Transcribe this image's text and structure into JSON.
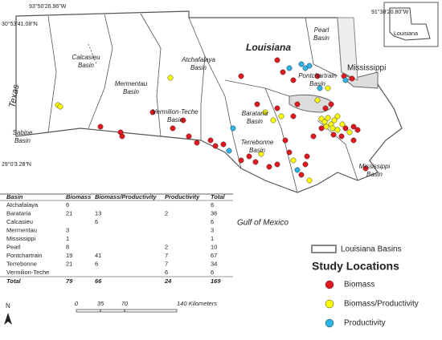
{
  "coordinates": {
    "top_left_w": "93°50'26.96\"W",
    "top_left_n": "30°53'41.08\"N",
    "top_right_w": "91°38'20.80\"W",
    "bottom_n": "29°0'3.28\"N"
  },
  "regions": {
    "texas": "Texas",
    "louisiana": "Louisiana",
    "mississippi": "Mississippi",
    "gulf": "Gulf of Mexico",
    "inset": "Louisiana"
  },
  "basins": [
    {
      "name": [
        "Calcasieu",
        "Basin"
      ]
    },
    {
      "name": [
        "Mermentau",
        "Basin"
      ]
    },
    {
      "name": [
        "Atchafalaya",
        "Basin"
      ]
    },
    {
      "name": [
        "Sabine",
        "Basin"
      ]
    },
    {
      "name": [
        "Vermilion-Teche",
        "Basin"
      ]
    },
    {
      "name": [
        "Barataria",
        "Basin"
      ]
    },
    {
      "name": [
        "Terrebonne",
        "Basin"
      ]
    },
    {
      "name": [
        "Pontchartrain",
        "Basin"
      ]
    },
    {
      "name": [
        "Pearl",
        "Basin"
      ]
    },
    {
      "name": [
        "Mississippi",
        "Basin"
      ]
    }
  ],
  "table": {
    "header": [
      "Basin",
      "Biomass",
      "Biomass/Productivity",
      "Productivity",
      "Total"
    ],
    "rows": [
      [
        "Atchafalaya",
        6,
        null,
        null,
        6
      ],
      [
        "Barataria",
        21,
        13,
        2,
        36
      ],
      [
        "Calcasieu",
        null,
        6,
        null,
        6
      ],
      [
        "Mermentau",
        3,
        null,
        null,
        3
      ],
      [
        "Mississippi",
        1,
        null,
        null,
        1
      ],
      [
        "Pearl",
        8,
        null,
        2,
        10
      ],
      [
        "Pontchartrain",
        19,
        41,
        7,
        67
      ],
      [
        "Terrebonne",
        21,
        6,
        7,
        34
      ],
      [
        "Vermilion-Teche",
        null,
        null,
        6,
        6
      ]
    ],
    "total": [
      "Total",
      79,
      66,
      24,
      169
    ]
  },
  "legend": {
    "basins": "Louisiana Basins",
    "title": "Study Locations",
    "items": [
      {
        "label": "Biomass",
        "color": "#e3171e"
      },
      {
        "label": "Biomass/Productivity",
        "color": "#ffff00"
      },
      {
        "label": "Productivity",
        "color": "#2db4e6"
      }
    ]
  },
  "north": "N",
  "scale": [
    "0",
    "35",
    "70",
    "140 Kilometers"
  ]
}
